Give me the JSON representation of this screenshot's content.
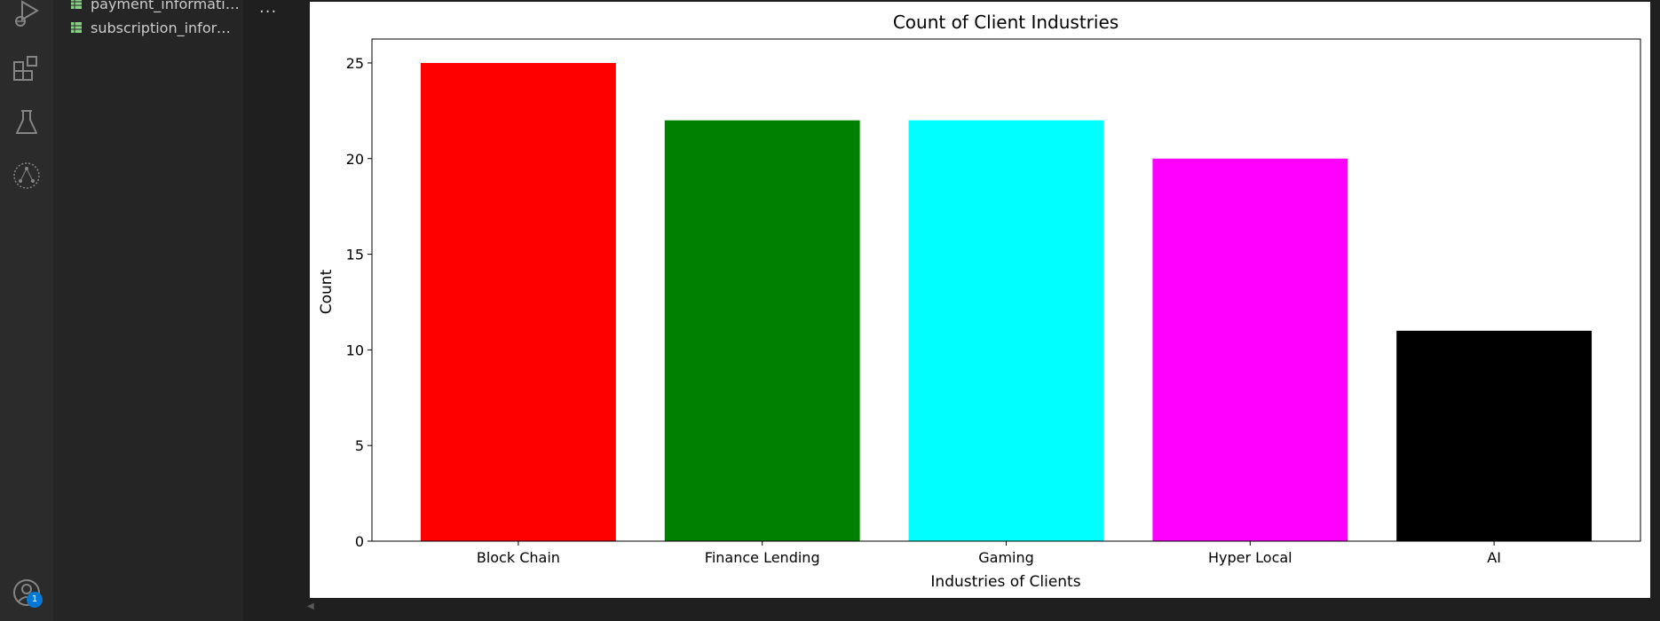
{
  "sidebar": {
    "files": [
      {
        "label": "payment_information.csv",
        "icon": "table-icon"
      },
      {
        "label": "subscription_information.csv",
        "icon": "table-icon"
      }
    ]
  },
  "editor": {
    "more_label": "..."
  },
  "accounts": {
    "badge_count": "1"
  },
  "colors": {
    "file_icon": "#89d185",
    "badge": "#0078d4"
  },
  "chart_data": {
    "type": "bar",
    "title": "Count of Client Industries",
    "xlabel": "Industries of Clients",
    "ylabel": "Count",
    "categories": [
      "Block Chain",
      "Finance Lending",
      "Gaming",
      "Hyper Local",
      "AI"
    ],
    "values": [
      25,
      22,
      22,
      20,
      11
    ],
    "colors": [
      "#ff0000",
      "#008000",
      "#00ffff",
      "#ff00ff",
      "#000000"
    ],
    "ylim": [
      0,
      26.25
    ],
    "yticks": [
      0,
      5,
      10,
      15,
      20,
      25
    ],
    "grid": false
  }
}
